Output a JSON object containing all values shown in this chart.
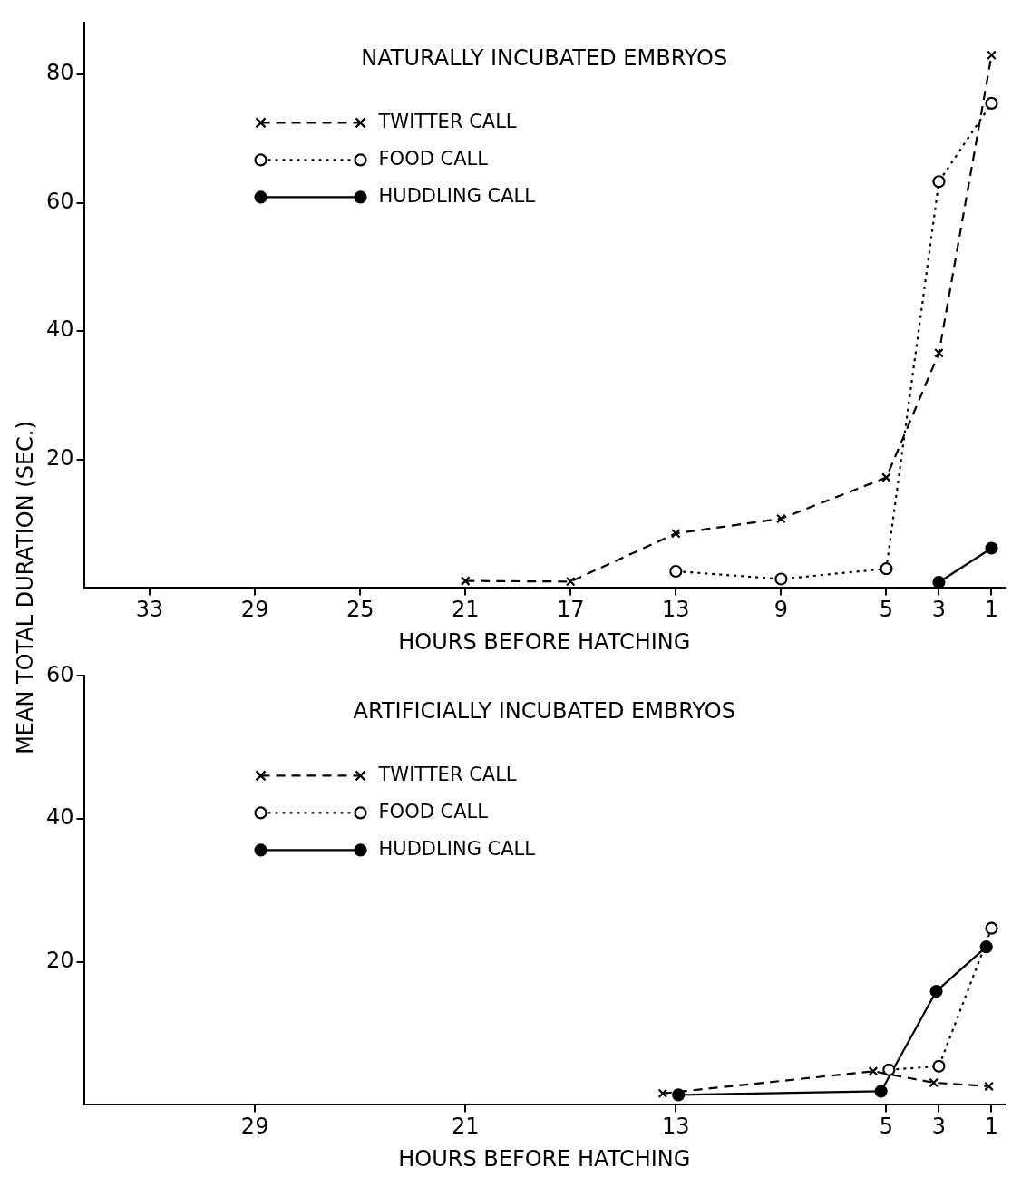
{
  "chart_data": [
    {
      "type": "line",
      "title": "NATURALLY INCUBATED EMBRYOS",
      "xlabel": "HOURS BEFORE HATCHING",
      "ylabel": "MEAN TOTAL DURATION (SEC.)",
      "xlim": [
        35.5,
        0.5
      ],
      "xticks": [
        33,
        29,
        25,
        21,
        17,
        13,
        9,
        5,
        3,
        1
      ],
      "ylim": [
        0,
        88
      ],
      "yticks": [
        20,
        40,
        60,
        80
      ],
      "legend": "top left",
      "series": [
        {
          "name": "TWITTER CALL",
          "color": "#000000",
          "marker": "cross",
          "line_style": "dashed",
          "x": [
            21,
            17,
            13,
            9,
            5,
            3,
            1
          ],
          "values": [
            1.1,
            1,
            8.5,
            10.8,
            17.2,
            36.6,
            83
          ]
        },
        {
          "name": "FOOD CALL",
          "color": "#000000",
          "marker": "circle",
          "line_style": "dotted",
          "x": [
            13,
            9,
            5,
            3,
            1
          ],
          "values": [
            2.6,
            1.4,
            3,
            63.3,
            75.5
          ]
        },
        {
          "name": "HUDDLING CALL",
          "color": "#000000",
          "marker": "circle",
          "line_style": "solid",
          "x": [
            3,
            1
          ],
          "values": [
            0.9,
            6.2
          ]
        }
      ]
    },
    {
      "type": "line",
      "title": "ARTIFICIALLY INCUBATED EMBRYOS",
      "xlabel": "HOURS BEFORE HATCHING",
      "xlim": [
        35.5,
        0.5
      ],
      "xticks": [
        29,
        21,
        13,
        5,
        3,
        1
      ],
      "ylim": [
        0,
        60
      ],
      "yticks": [
        20,
        40,
        60
      ],
      "legend": "top left",
      "series": [
        {
          "name": "TWITTER CALL",
          "color": "#000000",
          "marker": "cross",
          "line_style": "dashed",
          "x": [
            13.5,
            5.5,
            3.2,
            1.1
          ],
          "values": [
            1.6,
            4.7,
            3.1,
            2.6
          ]
        },
        {
          "name": "FOOD CALL",
          "color": "#000000",
          "marker": "circle",
          "line_style": "dotted",
          "x": [
            4.9,
            3,
            1
          ],
          "values": [
            4.9,
            5.4,
            24.7
          ]
        },
        {
          "name": "HUDDLING CALL",
          "color": "#000000",
          "marker": "circle",
          "line_style": "solid",
          "x": [
            12.9,
            5.2,
            3.1,
            1.2
          ],
          "values": [
            1.4,
            1.9,
            15.9,
            22.1
          ]
        }
      ]
    }
  ]
}
